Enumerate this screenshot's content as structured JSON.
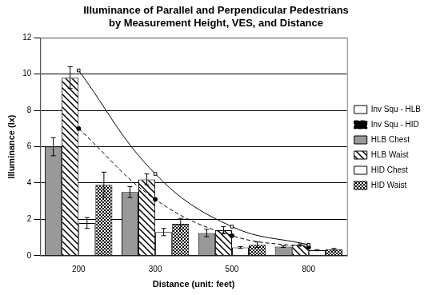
{
  "chart_data": {
    "type": "bar",
    "title": [
      "Illuminance of Parallel and Perpendicular Pedestrians",
      "by Measurement Height, VES, and Distance"
    ],
    "x_label": "Distance (unit: feet)",
    "y_label": "Illuminance (lx)",
    "categories": [
      "200",
      "300",
      "500",
      "800"
    ],
    "series": [
      {
        "name": "HLB Chest",
        "type": "bar",
        "color": "#999999",
        "values": [
          6.0,
          3.5,
          1.25,
          0.5
        ],
        "errors": [
          0.5,
          0.3,
          0.2,
          0.05
        ]
      },
      {
        "name": "HLB Waist",
        "type": "bar",
        "color": "#ffffff",
        "values": [
          9.8,
          4.2,
          1.4,
          0.6
        ],
        "errors": [
          0.6,
          0.3,
          0.2,
          0.05
        ]
      },
      {
        "name": "HID Chest",
        "type": "bar",
        "color": "#ffffff",
        "values": [
          1.8,
          1.3,
          0.45,
          0.3
        ],
        "errors": [
          0.3,
          0.2,
          0.05,
          0.03
        ]
      },
      {
        "name": "HID Waist",
        "type": "bar",
        "color": "#ffffff",
        "values": [
          3.9,
          1.75,
          0.6,
          0.35
        ],
        "errors": [
          0.7,
          0.3,
          0.15,
          0.05
        ]
      },
      {
        "name": "Inv Squ - HLB",
        "type": "line",
        "color": "#000000",
        "line_style": "solid",
        "marker": "square",
        "values": [
          10.2,
          4.5,
          1.6,
          0.6
        ]
      },
      {
        "name": "Inv Squ - HID",
        "type": "line",
        "color": "#000000",
        "line_style": "dashed",
        "marker": "circle",
        "values": [
          7.0,
          3.1,
          1.1,
          0.45
        ]
      }
    ],
    "ylim": [
      0,
      12
    ],
    "yticks": [
      0,
      2,
      4,
      6,
      8,
      10,
      12
    ],
    "grid": true,
    "legend": "right"
  }
}
